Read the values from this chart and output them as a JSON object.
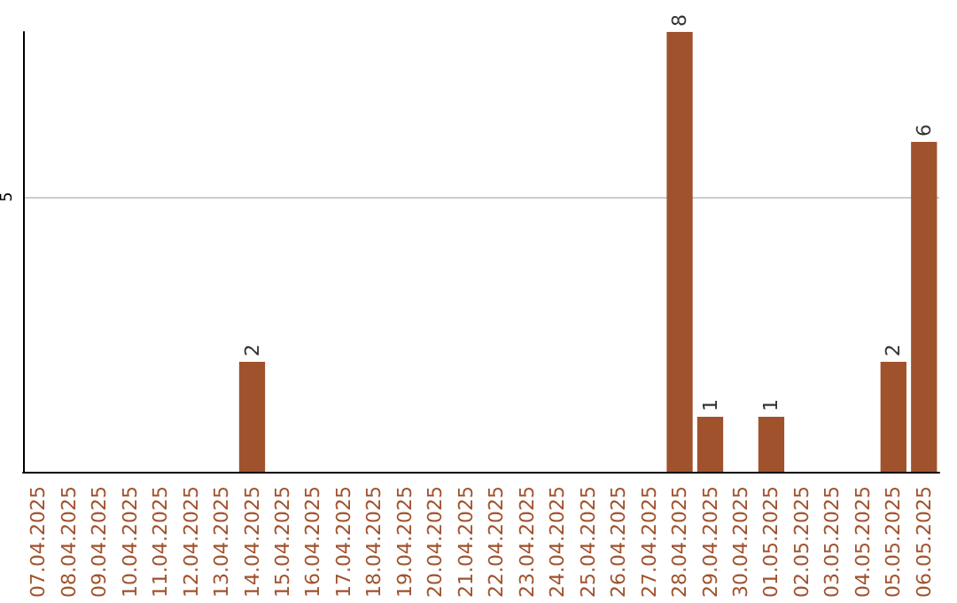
{
  "chart_data": {
    "type": "bar",
    "categories": [
      "07.04.2025",
      "08.04.2025",
      "09.04.2025",
      "10.04.2025",
      "11.04.2025",
      "12.04.2025",
      "13.04.2025",
      "14.04.2025",
      "15.04.2025",
      "16.04.2025",
      "17.04.2025",
      "18.04.2025",
      "19.04.2025",
      "20.04.2025",
      "21.04.2025",
      "22.04.2025",
      "23.04.2025",
      "24.04.2025",
      "25.04.2025",
      "26.04.2025",
      "27.04.2025",
      "28.04.2025",
      "29.04.2025",
      "30.04.2025",
      "01.05.2025",
      "02.05.2025",
      "03.05.2025",
      "04.05.2025",
      "05.05.2025",
      "06.05.2025"
    ],
    "values": [
      0,
      0,
      0,
      0,
      0,
      0,
      0,
      2,
      0,
      0,
      0,
      0,
      0,
      0,
      0,
      0,
      0,
      0,
      0,
      0,
      0,
      8,
      1,
      0,
      1,
      0,
      0,
      0,
      2,
      6
    ],
    "value_labels": [
      null,
      null,
      null,
      null,
      null,
      null,
      null,
      "2",
      null,
      null,
      null,
      null,
      null,
      null,
      null,
      null,
      null,
      null,
      null,
      null,
      null,
      "8",
      "1",
      null,
      "1",
      null,
      null,
      null,
      "2",
      "6"
    ],
    "color": "#a0522d",
    "ylim": [
      0,
      8
    ],
    "yticks": [
      5
    ],
    "grid": "y"
  }
}
